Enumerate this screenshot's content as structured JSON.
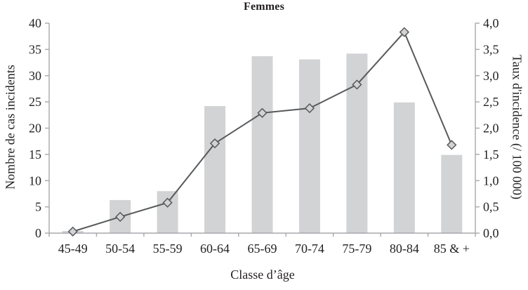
{
  "chart_data": {
    "type": "bar",
    "subtype": "combo-bar-line",
    "title": "Femmes",
    "xlabel": "Classe d’âge",
    "ylabel_left": "Nombre de cas incidents",
    "ylabel_right": "Taux d'incidence (/ 100 000)",
    "categories": [
      "45-49",
      "50-54",
      "55-59",
      "60-64",
      "65-69",
      "70-74",
      "75-79",
      "80-84",
      "85 & +"
    ],
    "series": [
      {
        "name": "Nombre de cas incidents",
        "type": "bar",
        "axis": "left",
        "values": [
          0.4,
          6.3,
          8.0,
          24.2,
          33.7,
          33.1,
          34.2,
          24.9,
          14.9
        ]
      },
      {
        "name": "Taux d'incidence (/ 100 000)",
        "type": "line",
        "axis": "right",
        "marker": "diamond",
        "values": [
          0.03,
          0.31,
          0.58,
          1.71,
          2.29,
          2.38,
          2.83,
          3.83,
          1.68
        ]
      }
    ],
    "left_axis": {
      "min": 0,
      "max": 40,
      "tick_step": 5,
      "ticks": [
        {
          "v": 0,
          "label": "0"
        },
        {
          "v": 5,
          "label": "5"
        },
        {
          "v": 10,
          "label": "10"
        },
        {
          "v": 15,
          "label": "15"
        },
        {
          "v": 20,
          "label": "20"
        },
        {
          "v": 25,
          "label": "25"
        },
        {
          "v": 30,
          "label": "30"
        },
        {
          "v": 35,
          "label": "35"
        },
        {
          "v": 40,
          "label": "40"
        }
      ]
    },
    "right_axis": {
      "min": 0,
      "max": 4,
      "tick_step": 0.5,
      "ticks": [
        {
          "v": 0,
          "label": "0,0"
        },
        {
          "v": 0.5,
          "label": "0,5"
        },
        {
          "v": 1,
          "label": "1,0"
        },
        {
          "v": 1.5,
          "label": "1,5"
        },
        {
          "v": 2,
          "label": "2,0"
        },
        {
          "v": 2.5,
          "label": "2,5"
        },
        {
          "v": 3,
          "label": "3,0"
        },
        {
          "v": 3.5,
          "label": "3,5"
        },
        {
          "v": 4,
          "label": "4,0"
        }
      ]
    },
    "grid": false,
    "legend": "none",
    "colors": {
      "bar": "#d1d3d4",
      "line": "#58595b",
      "marker_fill": "#d1d3d4",
      "axis": "#a6a8ab",
      "text": "#231f20"
    }
  }
}
